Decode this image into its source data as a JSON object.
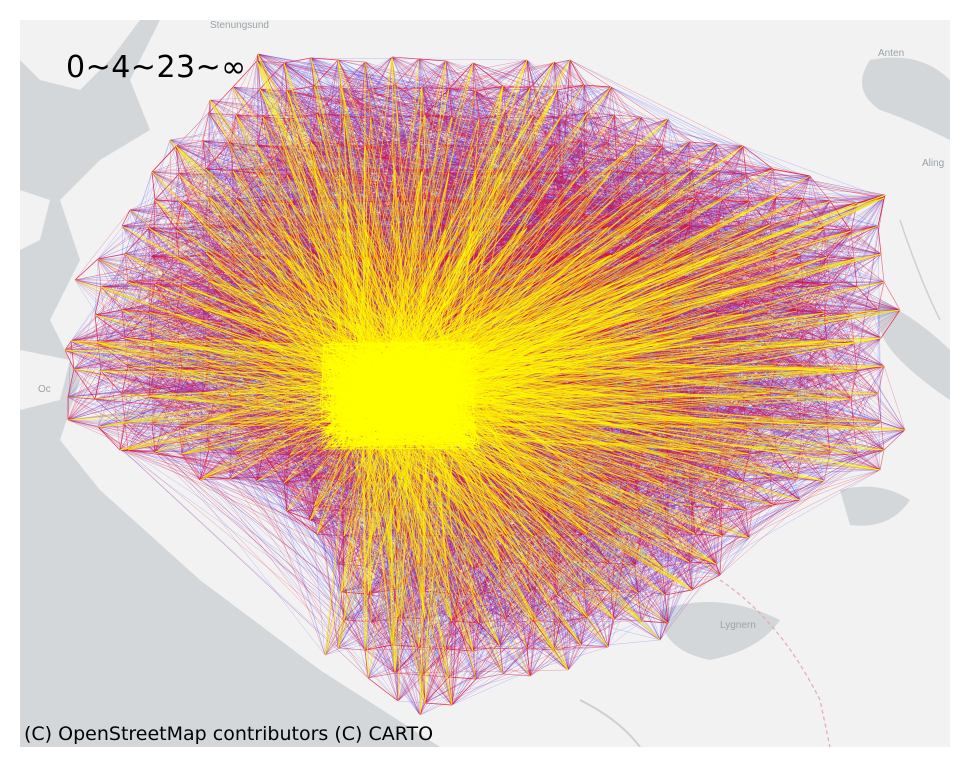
{
  "map": {
    "scale_label": "0~4~23~∞",
    "attribution": "(C) OpenStreetMap contributors (C) CARTO",
    "place_labels": [
      "Stenungsund",
      "Anten",
      "Aling",
      "Lygnern",
      "Oc"
    ],
    "colors": {
      "water": "#d3d7da",
      "land": "#f2f2f2",
      "edge_far": "#2b2bff",
      "edge_mid": "#e0103a",
      "edge_near": "#ffee00",
      "edge_core": "#ffff00"
    },
    "legend_classes": [
      "0~4",
      "4~23",
      "23~∞"
    ]
  }
}
